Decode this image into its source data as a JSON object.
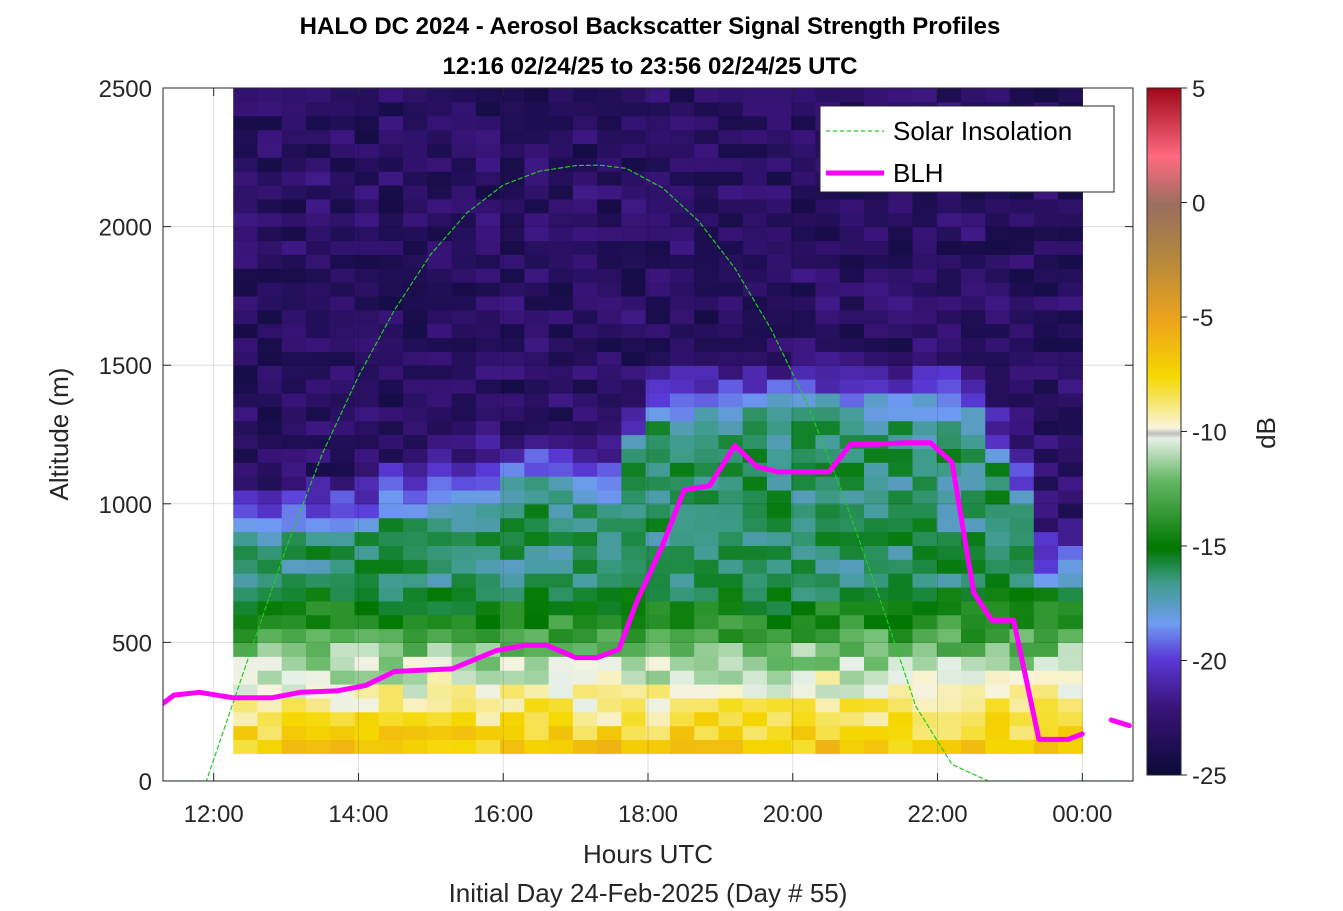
{
  "chart_data": {
    "type": "heatmap",
    "title": "HALO DC 2024 - Aerosol Backscatter Signal Strength Profiles",
    "subtitle": "12:16 02/24/25 to 23:56 02/24/25  UTC",
    "xlabel": "Hours UTC",
    "xlabel2": "Initial Day 24-Feb-2025 (Day # 55)",
    "ylabel": "Altitude (m)",
    "xlim": [
      11.3,
      24.7
    ],
    "ylim": [
      0,
      2500
    ],
    "x_ticks": [
      12,
      14,
      16,
      18,
      20,
      22,
      24
    ],
    "x_tick_labels": [
      "12:00",
      "14:00",
      "16:00",
      "18:00",
      "20:00",
      "22:00",
      "00:00"
    ],
    "y_ticks": [
      0,
      500,
      1000,
      1500,
      2000,
      2500
    ],
    "y_tick_labels": [
      "0",
      "500",
      "1000",
      "1500",
      "2000",
      "2500"
    ],
    "grid": true,
    "legend_position": "top-right",
    "colorbar": {
      "label": "dB",
      "range": [
        -25,
        5
      ],
      "ticks": [
        5,
        0,
        -5,
        -10,
        -15,
        -20,
        -25
      ],
      "tick_labels": [
        "5",
        "0",
        "-5",
        "-10",
        "-15",
        "-20",
        "-25"
      ]
    },
    "heatmap": {
      "x_start": 12.27,
      "x_end": 24.0,
      "n_columns": 35,
      "y_start": 100,
      "y_end": 2500,
      "cell_height": 50
    },
    "series": [
      {
        "name": "Solar Insolation",
        "style": "dashed",
        "color": "#22cc22",
        "x": [
          11.3,
          11.9,
          12.5,
          13.0,
          13.5,
          14.0,
          14.5,
          15.0,
          15.5,
          16.0,
          16.5,
          17.0,
          17.33,
          17.7,
          18.2,
          18.7,
          19.2,
          19.7,
          20.2,
          20.7,
          21.2,
          21.7,
          22.2,
          22.7,
          22.95,
          24.7
        ],
        "y": [
          0,
          0,
          460,
          840,
          1180,
          1460,
          1700,
          1900,
          2050,
          2150,
          2200,
          2220,
          2222,
          2210,
          2140,
          2020,
          1850,
          1630,
          1360,
          1030,
          660,
          270,
          60,
          0,
          0,
          0
        ]
      },
      {
        "name": "BLH",
        "style": "solid",
        "color": "#ff00ff",
        "x": [
          11.3,
          11.45,
          11.8,
          12.27,
          12.8,
          13.2,
          13.7,
          14.1,
          14.5,
          14.9,
          15.3,
          15.9,
          16.3,
          16.6,
          17.0,
          17.3,
          17.6,
          17.85,
          18.2,
          18.5,
          18.85,
          19.2,
          19.5,
          19.8,
          20.15,
          20.5,
          20.8,
          21.15,
          21.55,
          21.9,
          22.2,
          22.5,
          22.75,
          23.05,
          23.4,
          23.8,
          24.0
        ],
        "y": [
          280,
          310,
          320,
          300,
          300,
          320,
          325,
          345,
          395,
          400,
          405,
          470,
          490,
          490,
          445,
          445,
          475,
          650,
          850,
          1050,
          1065,
          1210,
          1135,
          1115,
          1115,
          1115,
          1215,
          1215,
          1220,
          1220,
          1150,
          680,
          580,
          580,
          150,
          150,
          170
        ],
        "extra_segment": {
          "x": [
            24.4,
            24.65
          ],
          "y": [
            220,
            200
          ]
        }
      }
    ]
  }
}
